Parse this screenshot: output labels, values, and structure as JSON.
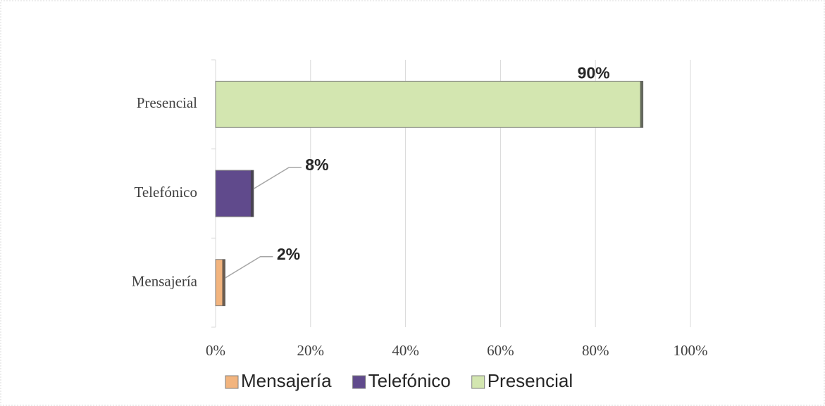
{
  "chart_data": {
    "type": "bar",
    "orientation": "horizontal",
    "categories": [
      "Mensajería",
      "Telefónico",
      "Presencial"
    ],
    "values": [
      2,
      8,
      90
    ],
    "value_labels": [
      "2%",
      "8%",
      "90%"
    ],
    "colors": [
      "#f2b47e",
      "#604a8c",
      "#d3e6b0"
    ],
    "xlim": [
      0,
      100
    ],
    "xticks": [
      {
        "value": 0,
        "label": "0%"
      },
      {
        "value": 20,
        "label": "20%"
      },
      {
        "value": 40,
        "label": "40%"
      },
      {
        "value": 60,
        "label": "60%"
      },
      {
        "value": 80,
        "label": "80%"
      },
      {
        "value": 100,
        "label": "100%"
      }
    ],
    "grid": true,
    "legend": "bottom"
  }
}
